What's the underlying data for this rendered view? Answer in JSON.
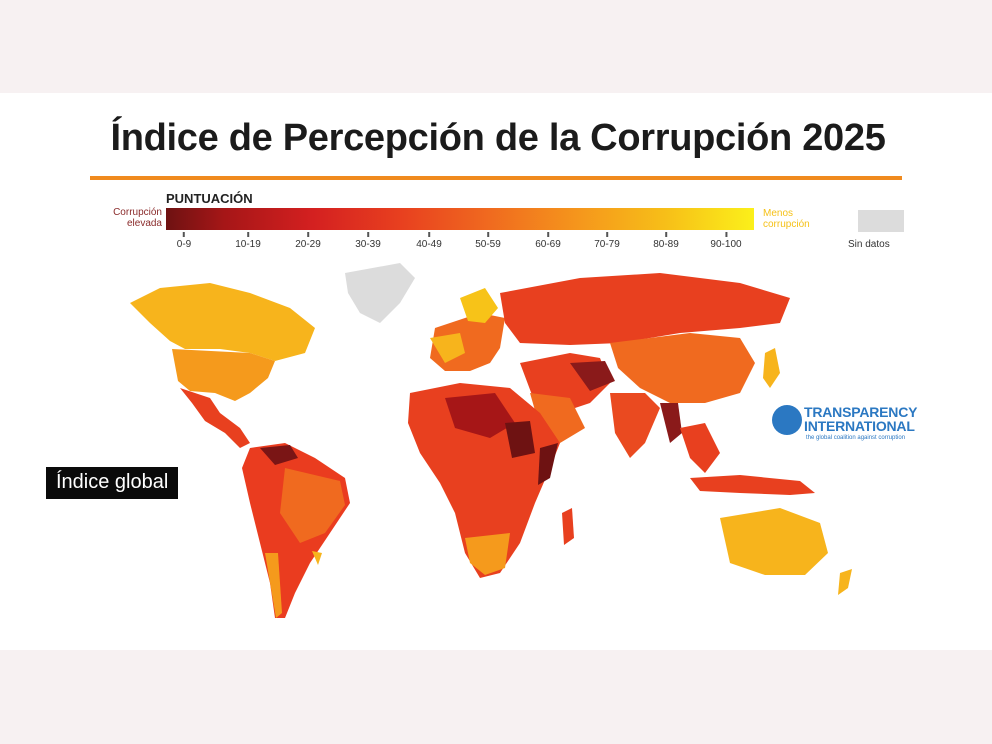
{
  "title": "Índice de Percepción de la Corrupción 2025",
  "legend": {
    "heading": "PUNTUACIÓN",
    "low_label": "Corrupción elevada",
    "high_label": "Menos corrupción",
    "no_data_label": "Sin datos",
    "bins": [
      "0-9",
      "10-19",
      "20-29",
      "30-39",
      "40-49",
      "50-59",
      "60-69",
      "70-79",
      "80-89",
      "90-100"
    ],
    "colors": {
      "low": "#6e1212",
      "mid": "#e8401f",
      "high": "#fbf01a",
      "no_data": "#dcdcdc"
    }
  },
  "logo": {
    "name_line1": "TRANSPARENCY",
    "name_line2": "INTERNATIONAL",
    "tagline": "the global coalition against corruption",
    "icon": "transparency-international-logo-icon"
  },
  "caption": "Índice global"
}
